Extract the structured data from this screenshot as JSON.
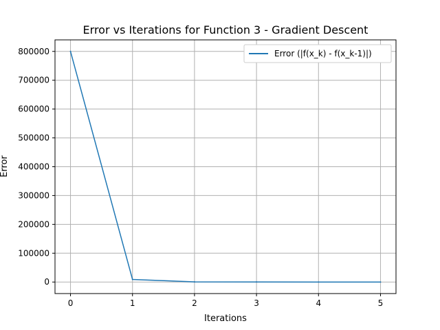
{
  "chart_data": {
    "type": "line",
    "title": "Error vs Iterations for Function 3 - Gradient Descent",
    "xlabel": "Iterations",
    "ylabel": "Error",
    "x": [
      0,
      1,
      2,
      3,
      4,
      5
    ],
    "series": [
      {
        "name": "Error (|f(x_k) - f(x_k-1)|)",
        "color": "#1f77b4",
        "values": [
          800000,
          9000,
          500,
          100,
          50,
          20
        ]
      }
    ],
    "xlim": [
      -0.25,
      5.25
    ],
    "ylim": [
      -40000,
      840000
    ],
    "xticks": [
      0,
      1,
      2,
      3,
      4,
      5
    ],
    "yticks": [
      0,
      100000,
      200000,
      300000,
      400000,
      500000,
      600000,
      700000,
      800000
    ],
    "grid": true,
    "legend_position": "top-right"
  }
}
